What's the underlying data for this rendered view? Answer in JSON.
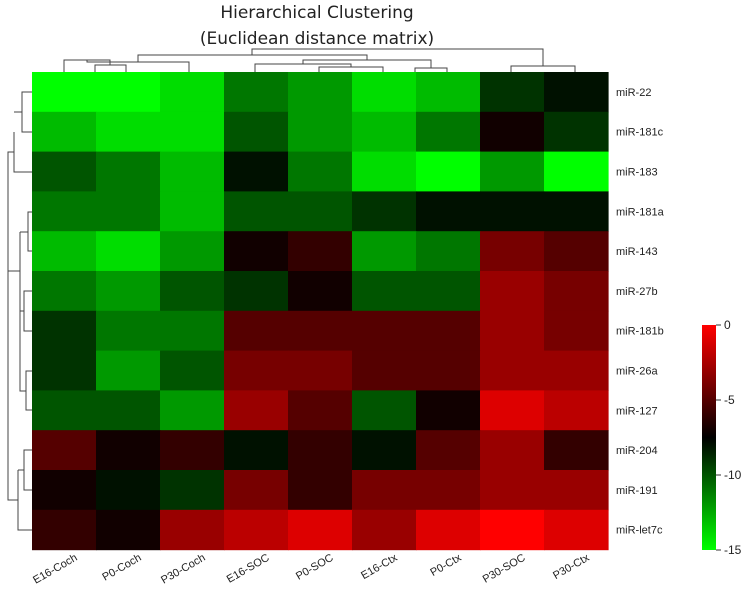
{
  "chart_data": {
    "type": "heatmap",
    "title": "Hierarchical Clustering",
    "subtitle": "(Euclidean distance matrix)",
    "columns": [
      "E16-Coch",
      "P0-Coch",
      "P30-Coch",
      "E16-SOC",
      "P0-SOC",
      "E16-Ctx",
      "P0-Ctx",
      "P30-SOC",
      "P30-Ctx"
    ],
    "rows": [
      "miR-22",
      "miR-181c",
      "miR-183",
      "miR-181a",
      "miR-143",
      "miR-27b",
      "miR-181b",
      "miR-26a",
      "miR-127",
      "miR-204",
      "miR-191",
      "miR-let7c"
    ],
    "values": [
      [
        -15,
        -15,
        -14,
        -11,
        -12,
        -14,
        -13,
        -9,
        -8
      ],
      [
        -13,
        -14,
        -14,
        -10,
        -12,
        -13,
        -11,
        -7,
        -9
      ],
      [
        -10,
        -11,
        -13,
        -8,
        -11,
        -14,
        -15,
        -12,
        -15
      ],
      [
        -11,
        -11,
        -13,
        -10,
        -10,
        -9,
        -8,
        -8,
        -8
      ],
      [
        -13,
        -14,
        -12,
        -7,
        -6,
        -12,
        -11,
        -4,
        -5
      ],
      [
        -11,
        -12,
        -10,
        -9,
        -7,
        -10,
        -10,
        -3,
        -4
      ],
      [
        -9,
        -11,
        -11,
        -5,
        -5,
        -5,
        -5,
        -3,
        -4
      ],
      [
        -9,
        -12,
        -10,
        -4,
        -4,
        -5,
        -5,
        -3,
        -3
      ],
      [
        -10,
        -10,
        -12,
        -3,
        -5,
        -10,
        -7,
        -1,
        -2
      ],
      [
        -5,
        -7,
        -6,
        -8,
        -6,
        -8,
        -5,
        -3,
        -6
      ],
      [
        -7,
        -8,
        -9,
        -4,
        -6,
        -4,
        -4,
        -3,
        -3
      ],
      [
        -6,
        -7,
        -3,
        -2,
        -1,
        -3,
        -1,
        0,
        -1
      ]
    ],
    "colorbar": {
      "min": -15,
      "max": 0,
      "ticks": [
        0,
        -5,
        -10,
        -15
      ],
      "colors": {
        "low": "#00ff00",
        "mid": "#000000",
        "high": "#ff0000"
      }
    }
  }
}
